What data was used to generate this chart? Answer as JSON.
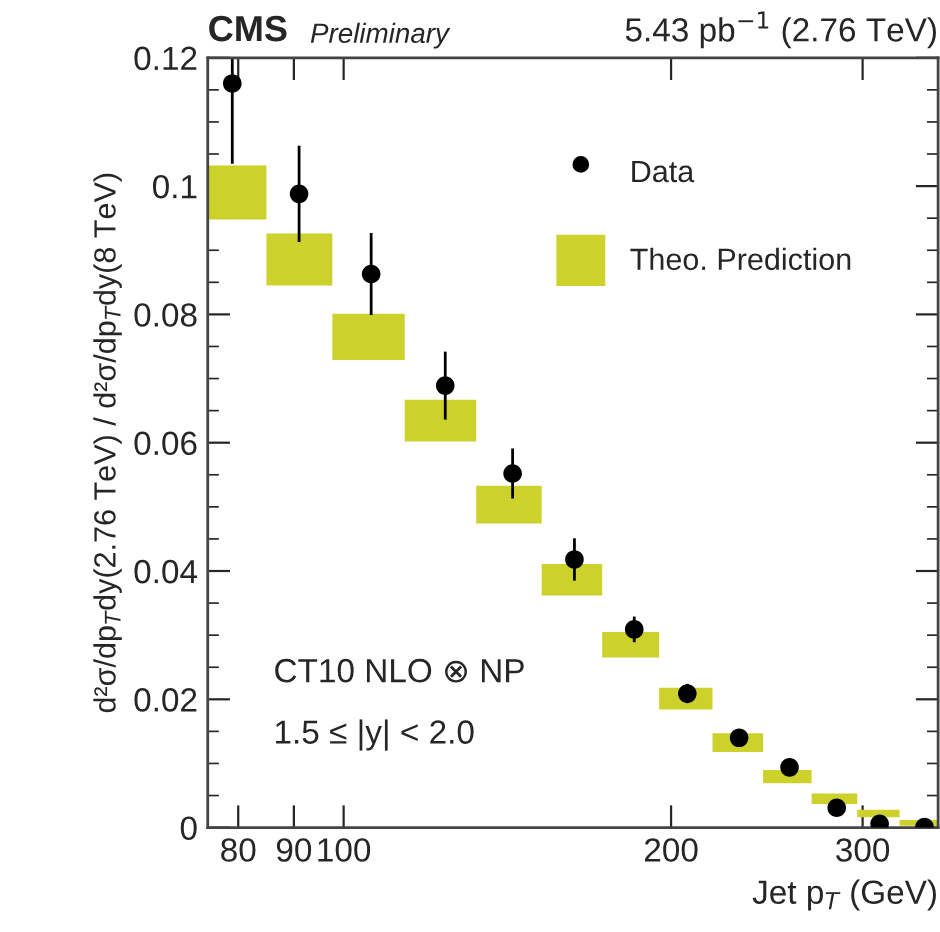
{
  "chart_data": {
    "type": "scatter",
    "title": "CMS",
    "subtitle": "Preliminary",
    "xlabel": "Jet p$_{T}$ (GeV)",
    "ylabel": "d²σ/dp$_{T}$dy(2.76 TeV) / d²σ/dp$_{T}$dy(8 TeV)",
    "annotations": [
      "5.43 pb$^{−1}$ (2.76 TeV)",
      "CT10 NLO ⊗ NP",
      "1.5 ≤ |y| < 2.0"
    ],
    "log": "x",
    "xlim": [
      75,
      352
    ],
    "xticks": [
      80,
      90,
      100,
      200,
      300
    ],
    "ylim": [
      0,
      0.12
    ],
    "yticks": [
      0,
      0.02,
      0.04,
      0.06,
      0.08,
      0.1,
      0.12
    ],
    "grid": false,
    "legend": "top right",
    "series": [
      {
        "name": "Data",
        "marker": "circle",
        "color": "#000000",
        "x": [
          79,
          91,
          106,
          124,
          143,
          163,
          185,
          207,
          231,
          257,
          284,
          311,
          342
        ],
        "values": [
          0.116,
          0.0988,
          0.0863,
          0.0689,
          0.0552,
          0.0418,
          0.0309,
          0.0209,
          0.014,
          0.0094,
          0.0031,
          0.0006,
          0.0001
        ],
        "errors": [
          0.0125,
          0.0075,
          0.0064,
          0.0053,
          0.0039,
          0.0033,
          0.002,
          0.0015,
          0.0012,
          0.0012,
          0.0012,
          0.0006,
          0.0001
        ]
      },
      {
        "name": "Theo. Prediction",
        "type": "bar",
        "color": "#cdd12c",
        "x": [
          79.6,
          90.6,
          105.2,
          123.1,
          142.4,
          162.4,
          184,
          206.7,
          230.6,
          256.1,
          283.2,
          310.7,
          338.8
        ],
        "base": [
          0.0948,
          0.0845,
          0.0729,
          0.0602,
          0.0474,
          0.0362,
          0.0265,
          0.0184,
          0.0118,
          0.0069,
          0.0037,
          0.0016,
          0.0003
        ],
        "values": [
          0.0084,
          0.0081,
          0.0072,
          0.0065,
          0.0059,
          0.0049,
          0.004,
          0.0034,
          0.0029,
          0.0021,
          0.0016,
          0.0012,
          0.0009
        ]
      }
    ]
  }
}
